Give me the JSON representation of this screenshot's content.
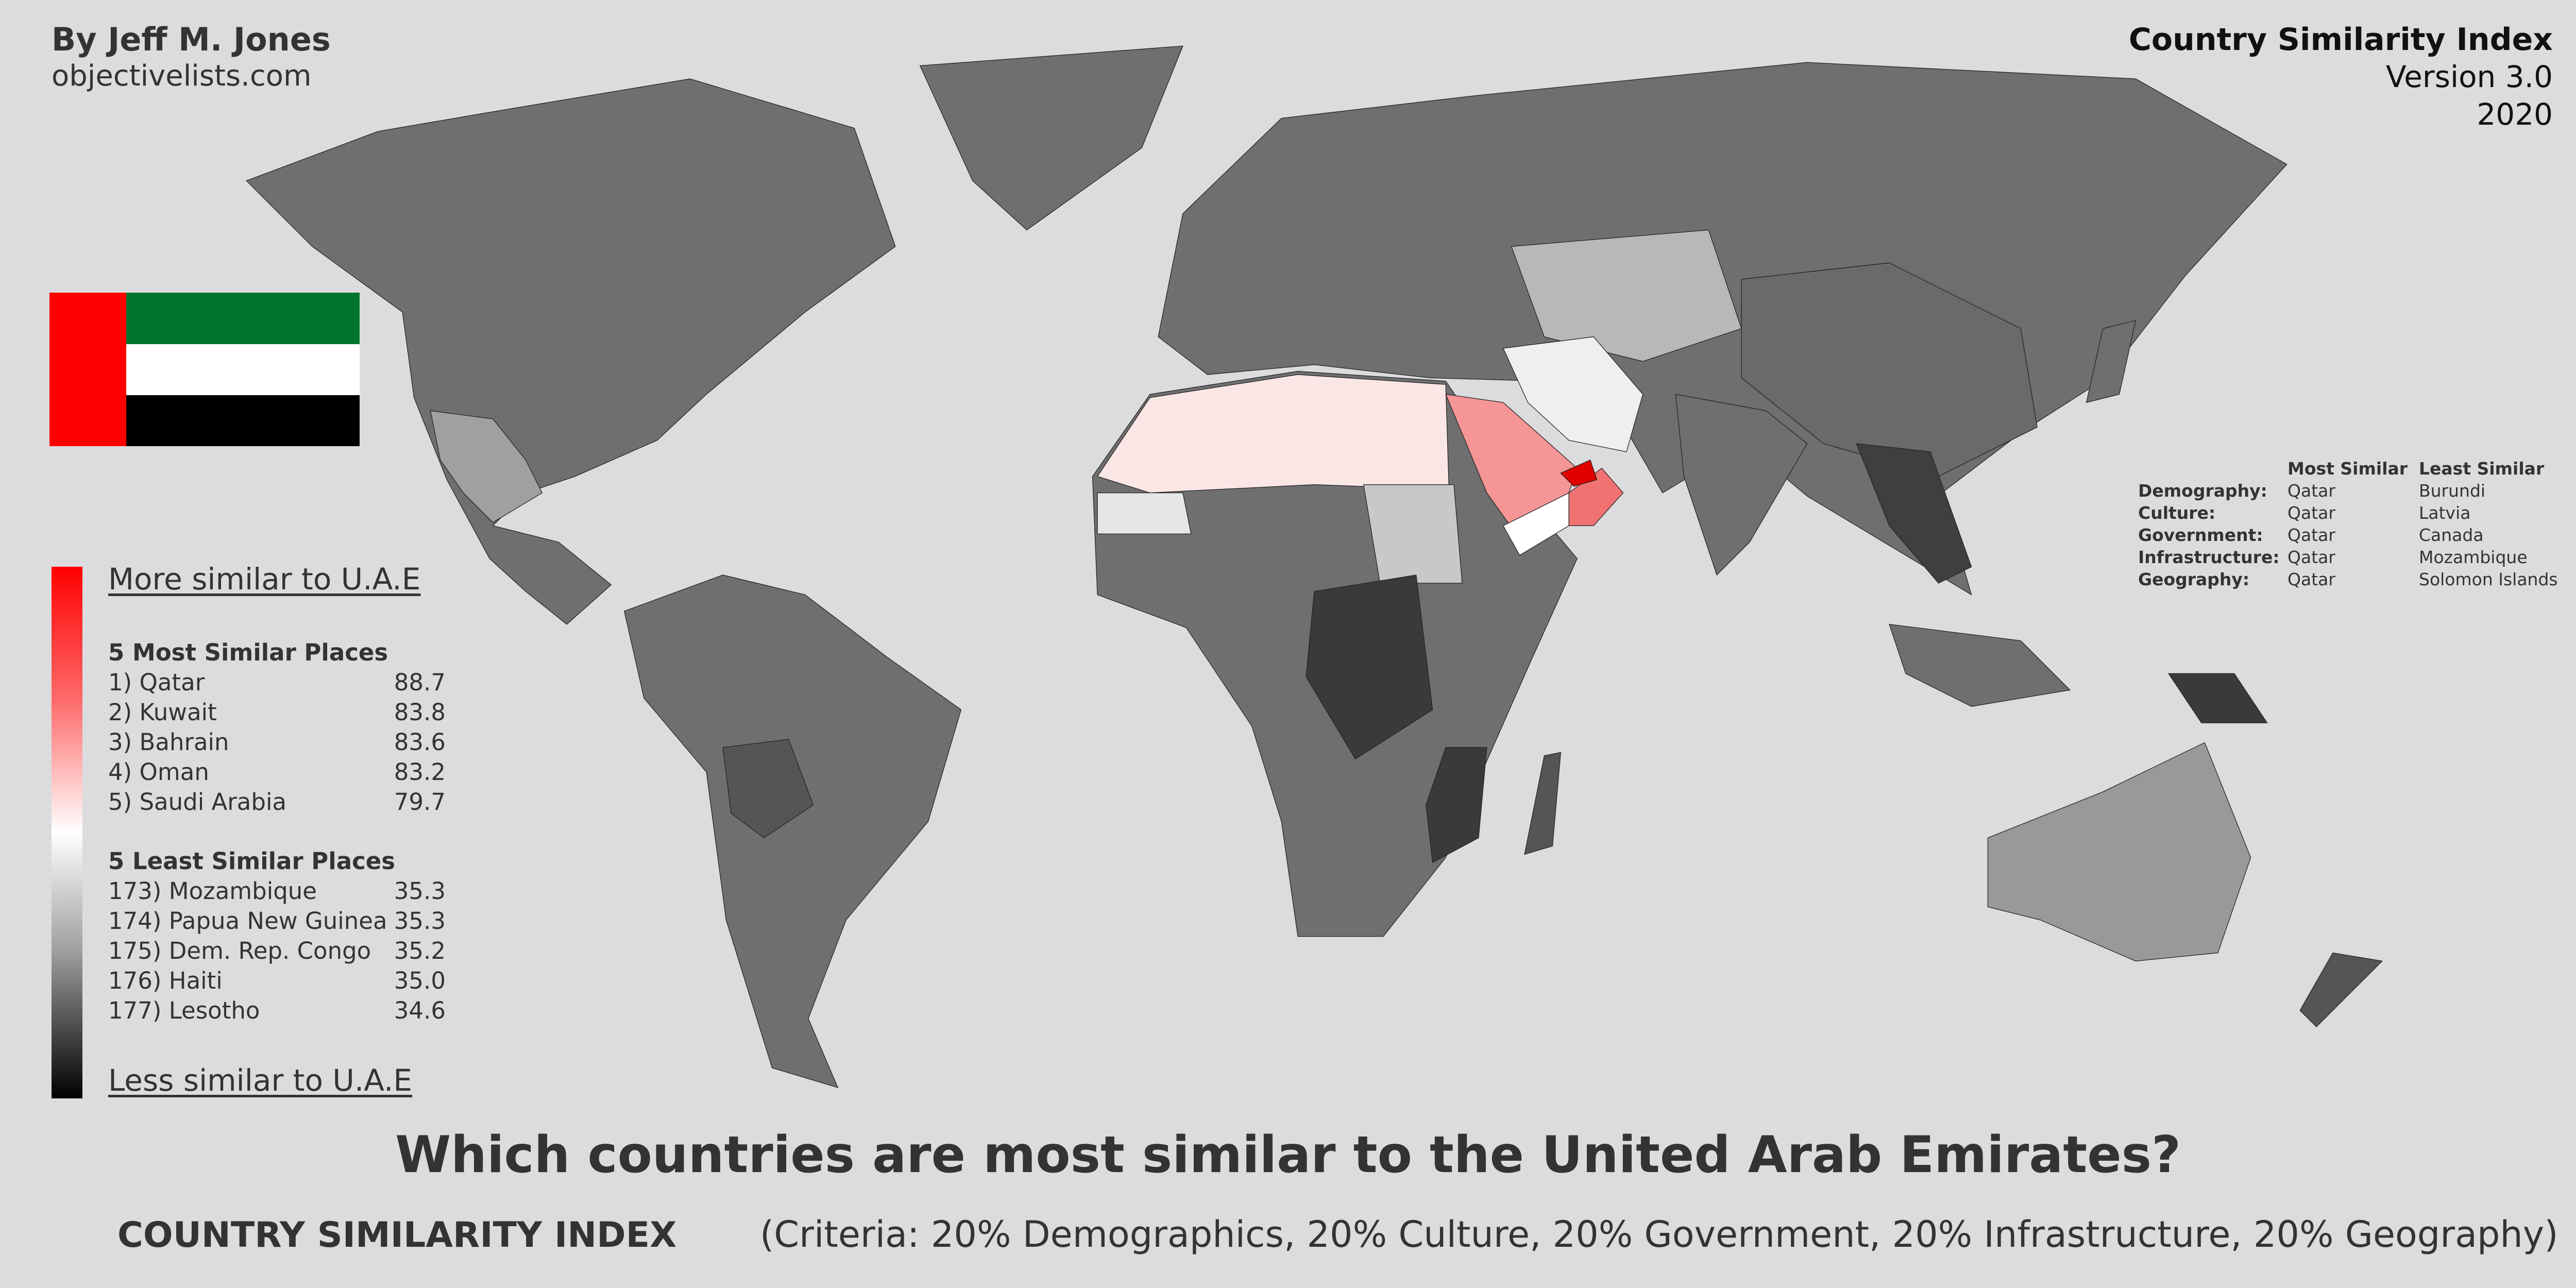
{
  "header": {
    "author": "By Jeff M. Jones",
    "site": "objectivelists.com",
    "index_title": "Country Similarity Index",
    "version": "Version 3.0",
    "year": "2020"
  },
  "flag": {
    "country": "United Arab Emirates",
    "colors": {
      "red": "#ff0000",
      "green": "#00732f",
      "white": "#ffffff",
      "black": "#000000"
    }
  },
  "legend": {
    "top_label": "More similar to U.A.E",
    "bottom_label": "Less similar to U.A.E",
    "gradient": [
      "#ff0000",
      "#ffffff",
      "#000000"
    ],
    "most_heading": "5 Most Similar Places",
    "most": [
      {
        "label": "1) Qatar",
        "value": "88.7"
      },
      {
        "label": "2) Kuwait",
        "value": "83.8"
      },
      {
        "label": "3) Bahrain",
        "value": "83.6"
      },
      {
        "label": "4) Oman",
        "value": "83.2"
      },
      {
        "label": "5) Saudi Arabia",
        "value": "79.7"
      }
    ],
    "least_heading": "5 Least Similar Places",
    "least": [
      {
        "label": "173) Mozambique",
        "value": "35.3"
      },
      {
        "label": "174) Papua New Guinea",
        "value": "35.3"
      },
      {
        "label": "175) Dem. Rep. Congo",
        "value": "35.2"
      },
      {
        "label": "176) Haiti",
        "value": "35.0"
      },
      {
        "label": "177) Lesotho",
        "value": "34.6"
      }
    ]
  },
  "criteria_table": {
    "col_most": "Most Similar",
    "col_least": "Least Similar",
    "rows": [
      {
        "label": "Demography:",
        "most": "Qatar",
        "least": "Burundi"
      },
      {
        "label": "Culture:",
        "most": "Qatar",
        "least": "Latvia"
      },
      {
        "label": "Government:",
        "most": "Qatar",
        "least": "Canada"
      },
      {
        "label": "Infrastructure:",
        "most": "Qatar",
        "least": "Mozambique"
      },
      {
        "label": "Geography:",
        "most": "Qatar",
        "least": "Solomon Islands"
      }
    ]
  },
  "map": {
    "colors": {
      "background": "#dcdcde",
      "land_default": "#6f6f6f",
      "land_dark": "#3c3c3c",
      "land_light": "#a8a8a8",
      "near_white": "#fbe6e6",
      "saudi": "#f59595",
      "oman": "#f07272",
      "uae": "#e00000"
    }
  },
  "footer": {
    "title": "Which countries are most similar to the United Arab Emirates?",
    "index_name": "COUNTRY SIMILARITY INDEX",
    "criteria": "(Criteria: 20% Demographics, 20% Culture, 20% Government, 20% Infrastructure, 20% Geography)"
  }
}
